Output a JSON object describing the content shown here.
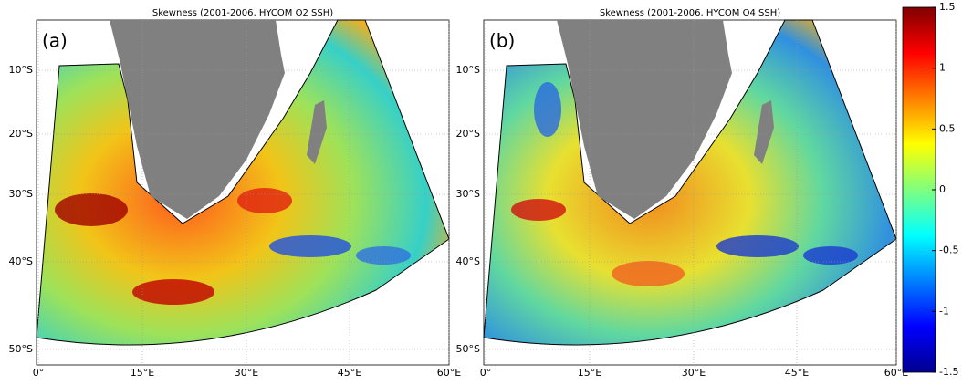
{
  "panels": [
    {
      "title": "Skewness (2001-2006, HYCOM O2 SSH)",
      "label": "(a)",
      "lat_ticks": [
        "10°S",
        "20°S",
        "30°S",
        "40°S",
        "50°S"
      ],
      "lon_ticks": [
        "0°",
        "15°E",
        "30°E",
        "45°E",
        "60°E"
      ]
    },
    {
      "title": "Skewness (2001-2006, HYCOM O4 SSH)",
      "label": "(b)",
      "lat_ticks": [
        "10°S",
        "20°S",
        "30°S",
        "40°S",
        "50°S"
      ],
      "lon_ticks": [
        "0°",
        "15°E",
        "30°E",
        "45°E",
        "60°E"
      ]
    }
  ],
  "colorbar": {
    "lim": [
      -1.5,
      1.5
    ],
    "ticks": [
      1.5,
      1,
      0.5,
      0,
      -0.5,
      -1,
      -1.5
    ]
  }
}
